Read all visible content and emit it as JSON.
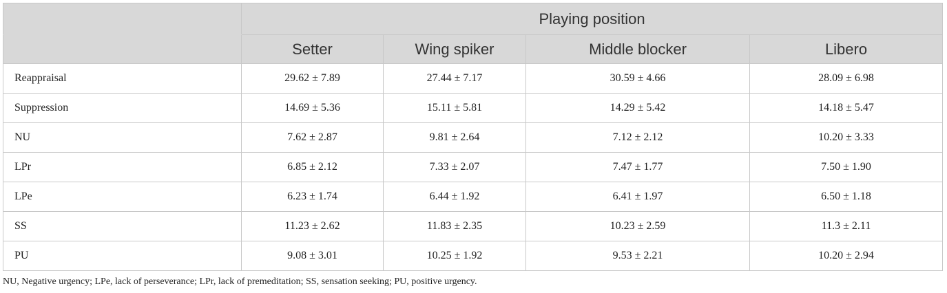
{
  "table": {
    "group_header": "Playing position",
    "columns": [
      "Setter",
      "Wing spiker",
      "Middle blocker",
      "Libero"
    ],
    "rows": [
      {
        "label": "Reappraisal",
        "values": [
          "29.62 ± 7.89",
          "27.44 ± 7.17",
          "30.59 ± 4.66",
          "28.09 ± 6.98"
        ]
      },
      {
        "label": "Suppression",
        "values": [
          "14.69 ± 5.36",
          "15.11 ± 5.81",
          "14.29 ± 5.42",
          "14.18 ± 5.47"
        ]
      },
      {
        "label": "NU",
        "values": [
          "7.62 ± 2.87",
          "9.81 ± 2.64",
          "7.12 ± 2.12",
          "10.20 ± 3.33"
        ]
      },
      {
        "label": "LPr",
        "values": [
          "6.85 ± 2.12",
          "7.33 ± 2.07",
          "7.47 ± 1.77",
          "7.50 ± 1.90"
        ]
      },
      {
        "label": "LPe",
        "values": [
          "6.23 ± 1.74",
          "6.44 ± 1.92",
          "6.41 ± 1.97",
          "6.50 ± 1.18"
        ]
      },
      {
        "label": "SS",
        "values": [
          "11.23 ± 2.62",
          "11.83 ± 2.35",
          "10.23 ± 2.59",
          "11.3 ± 2.11"
        ]
      },
      {
        "label": "PU",
        "values": [
          "9.08 ± 3.01",
          "10.25 ± 1.92",
          "9.53 ± 2.21",
          "10.20 ± 2.94"
        ]
      }
    ]
  },
  "footnote": "NU, Negative urgency; LPe, lack of perseverance; LPr, lack of premeditation; SS, sensation seeking; PU, positive urgency."
}
